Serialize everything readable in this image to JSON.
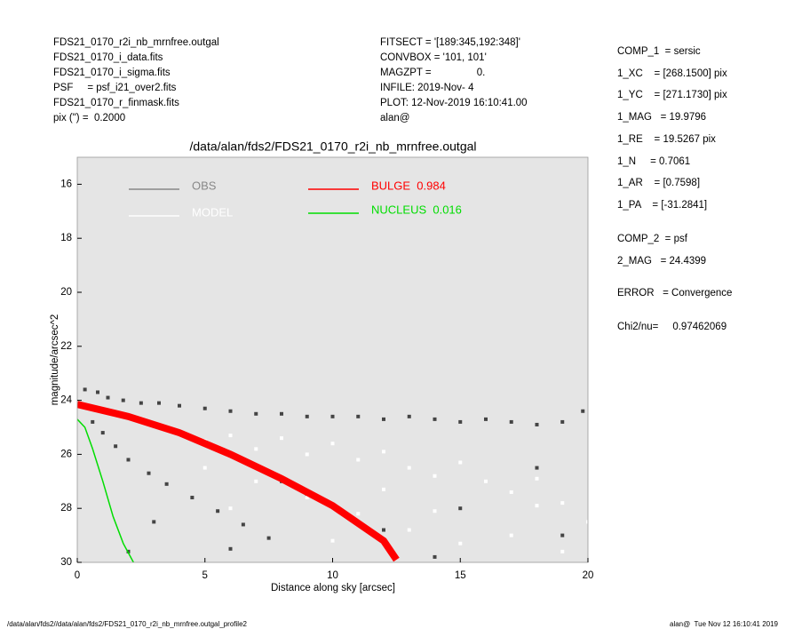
{
  "header": {
    "left": [
      "FDS21_0170_r2i_nb_mrnfree.outgal",
      "FDS21_0170_i_data.fits",
      "FDS21_0170_i_sigma.fits",
      "PSF     = psf_i21_over2.fits",
      "FDS21_0170_r_finmask.fits",
      "pix (\") =  0.2000"
    ],
    "middle": [
      "FITSECT = '[189:345,192:348]'",
      "CONVBOX = '101, 101'",
      "MAGZPT =                0.",
      "INFILE: 2019-Nov- 4",
      "PLOT: 12-Nov-2019 16:10:41.00",
      "alan@"
    ],
    "right": [
      "COMP_1  = sersic",
      "1_XC    = [268.1500] pix",
      "1_YC    = [271.1730] pix",
      "1_MAG   = 19.9796",
      "1_RE    = 19.5267 pix",
      "1_N     = 0.7061",
      "1_AR    = [0.7598]",
      "1_PA    = [-31.2841]",
      "COMP_2  = psf",
      "2_MAG   = 24.4399",
      "ERROR   = Convergence",
      "Chi2/nu=     0.97462069"
    ]
  },
  "footer": {
    "left": "/data/alan/fds2//data/alan/fds2/FDS21_0170_r2i_nb_mrnfree.outgal_profile2",
    "right": "alan@  Tue Nov 12 16:10:41 2019"
  },
  "chart_data": {
    "type": "profile",
    "title": "/data/alan/fds2/FDS21_0170_r2i_nb_mrnfree.outgal",
    "x_label": "Distance along sky [arcsec]",
    "y_label": "magnitude/arcsec^2",
    "xlim": [
      0,
      20
    ],
    "ylim": [
      15,
      30
    ],
    "y_inverted": true,
    "xticks": [
      0,
      5,
      10,
      15,
      20
    ],
    "yticks": [
      16,
      18,
      20,
      22,
      24,
      26,
      28,
      30
    ],
    "background": "#e5e5e5",
    "series": [
      {
        "name": "OBS",
        "type": "scatter",
        "color": "#444444",
        "legend_color": "#888888",
        "x": [
          0.3,
          0.8,
          1.2,
          1.8,
          2.5,
          3.2,
          4,
          5,
          6,
          7,
          8,
          9,
          10,
          11,
          12,
          13,
          14,
          15,
          16,
          17,
          18,
          19,
          19.8,
          0.6,
          1,
          1.5,
          2,
          2.8,
          3.5,
          4.5,
          5.5,
          6.5,
          7.5,
          3,
          6,
          9,
          12,
          15,
          18,
          2,
          8,
          14,
          19
        ],
        "values": [
          23.6,
          23.7,
          23.9,
          24,
          24.1,
          24.1,
          24.2,
          24.3,
          24.4,
          24.5,
          24.5,
          24.6,
          24.6,
          24.6,
          24.7,
          24.6,
          24.7,
          24.8,
          24.7,
          24.8,
          24.9,
          24.8,
          24.4,
          24.8,
          25.2,
          25.7,
          26.2,
          26.7,
          27.1,
          27.6,
          28.1,
          28.6,
          29.1,
          28.5,
          29.5,
          27.5,
          28.8,
          28,
          26.5,
          29.6,
          27,
          29.8,
          29
        ]
      },
      {
        "name": "MODEL",
        "type": "scatter",
        "color": "#ffffff",
        "legend_color": "#ffffff",
        "x": [
          4,
          5,
          6,
          7,
          8,
          9,
          10,
          11,
          12,
          13,
          14,
          15,
          16,
          17,
          18,
          19,
          20,
          5,
          7,
          9,
          11,
          13,
          15,
          17,
          19,
          6,
          10,
          14,
          18,
          12
        ],
        "values": [
          25.2,
          25.5,
          25.3,
          25.8,
          25.4,
          26,
          25.6,
          26.2,
          25.9,
          26.5,
          26.8,
          26.3,
          27,
          27.4,
          26.9,
          27.8,
          28.5,
          26.5,
          27,
          27.6,
          28.2,
          28.8,
          29.3,
          29,
          29.6,
          28,
          29.2,
          28.1,
          27.9,
          27.3
        ]
      },
      {
        "name": "BULGE  0.984",
        "type": "line",
        "color": "#ff0000",
        "legend_color": "#ff0000",
        "x": [
          0,
          2,
          4,
          6,
          8,
          10,
          12,
          12.5
        ],
        "values": [
          24.15,
          24.6,
          25.2,
          26.0,
          26.9,
          27.9,
          29.2,
          29.9
        ]
      },
      {
        "name": "NUCLEUS  0.016",
        "type": "line",
        "color": "#00dd00",
        "legend_color": "#00dd00",
        "x": [
          0,
          0.3,
          0.6,
          1,
          1.4,
          1.8,
          2.2
        ],
        "values": [
          24.7,
          25,
          25.8,
          27,
          28.3,
          29.3,
          30
        ]
      }
    ]
  }
}
